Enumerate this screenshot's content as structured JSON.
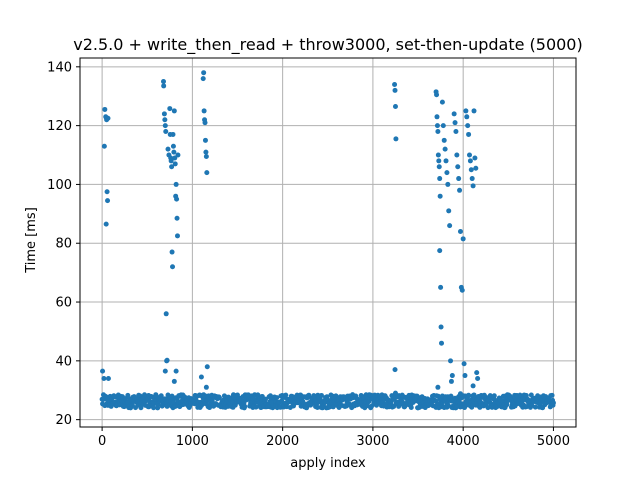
{
  "chart_data": {
    "type": "scatter",
    "title": "v2.5.0 + write_then_read + throw3000, set-then-update (5000)",
    "xlabel": "apply index",
    "ylabel": "Time [ms]",
    "xlim": [
      -245,
      5250
    ],
    "ylim": [
      17.5,
      143
    ],
    "xticks": [
      0,
      1000,
      2000,
      3000,
      4000,
      5000
    ],
    "yticks": [
      20,
      40,
      60,
      80,
      100,
      120,
      140
    ],
    "grid": true,
    "marker_color": "#1f77b4",
    "baseline": {
      "description_range": [
        0,
        5000
      ],
      "y_min": 24,
      "y_max": 28.5
    },
    "outliers": [
      [
        5,
        36.5
      ],
      [
        20,
        34
      ],
      [
        30,
        125.5
      ],
      [
        40,
        123
      ],
      [
        50,
        122
      ],
      [
        25,
        113
      ],
      [
        45,
        86.5
      ],
      [
        55,
        97.5
      ],
      [
        60,
        94.5
      ],
      [
        70,
        34
      ],
      [
        65,
        122.5
      ],
      [
        680,
        135
      ],
      [
        682,
        133.5
      ],
      [
        690,
        124
      ],
      [
        695,
        122
      ],
      [
        700,
        120
      ],
      [
        705,
        118
      ],
      [
        710,
        56
      ],
      [
        715,
        40
      ],
      [
        720,
        40.2
      ],
      [
        700,
        36.5
      ],
      [
        730,
        112
      ],
      [
        740,
        110
      ],
      [
        750,
        125.8
      ],
      [
        755,
        117
      ],
      [
        760,
        109
      ],
      [
        765,
        108
      ],
      [
        770,
        106
      ],
      [
        775,
        77
      ],
      [
        780,
        72
      ],
      [
        785,
        117
      ],
      [
        790,
        113
      ],
      [
        795,
        111
      ],
      [
        800,
        125
      ],
      [
        805,
        109
      ],
      [
        810,
        107
      ],
      [
        815,
        96
      ],
      [
        820,
        100
      ],
      [
        825,
        95
      ],
      [
        830,
        88.5
      ],
      [
        835,
        82.5
      ],
      [
        840,
        110
      ],
      [
        800,
        33
      ],
      [
        820,
        36.5
      ],
      [
        1100,
        34.5
      ],
      [
        1120,
        136
      ],
      [
        1125,
        138
      ],
      [
        1130,
        125
      ],
      [
        1135,
        122
      ],
      [
        1140,
        121
      ],
      [
        1145,
        115
      ],
      [
        1150,
        111
      ],
      [
        1155,
        109.5
      ],
      [
        1160,
        104
      ],
      [
        1165,
        38
      ],
      [
        1155,
        31
      ],
      [
        3240,
        134
      ],
      [
        3245,
        132
      ],
      [
        3250,
        126.5
      ],
      [
        3255,
        115.5
      ],
      [
        3245,
        37
      ],
      [
        3250,
        29
      ],
      [
        3700,
        131.5
      ],
      [
        3705,
        130.5
      ],
      [
        3710,
        123
      ],
      [
        3715,
        120
      ],
      [
        3720,
        118
      ],
      [
        3725,
        110
      ],
      [
        3730,
        108
      ],
      [
        3735,
        106
      ],
      [
        3740,
        102
      ],
      [
        3745,
        96
      ],
      [
        3750,
        65
      ],
      [
        3755,
        51.5
      ],
      [
        3760,
        46
      ],
      [
        3740,
        77.5
      ],
      [
        3720,
        31
      ],
      [
        3770,
        128
      ],
      [
        3780,
        120
      ],
      [
        3790,
        115
      ],
      [
        3800,
        112
      ],
      [
        3810,
        108
      ],
      [
        3820,
        104
      ],
      [
        3830,
        100
      ],
      [
        3840,
        91
      ],
      [
        3850,
        86
      ],
      [
        3860,
        40
      ],
      [
        3870,
        33
      ],
      [
        3880,
        35
      ],
      [
        3900,
        124
      ],
      [
        3910,
        121
      ],
      [
        3920,
        118
      ],
      [
        3930,
        110
      ],
      [
        3940,
        106
      ],
      [
        3950,
        102
      ],
      [
        3960,
        98
      ],
      [
        3970,
        84
      ],
      [
        3980,
        65
      ],
      [
        3990,
        64
      ],
      [
        4000,
        81.5
      ],
      [
        4010,
        39
      ],
      [
        4020,
        35
      ],
      [
        3970,
        28.8
      ],
      [
        4030,
        125
      ],
      [
        4040,
        123
      ],
      [
        4050,
        120
      ],
      [
        4060,
        117
      ],
      [
        4070,
        110
      ],
      [
        4080,
        108
      ],
      [
        4090,
        105
      ],
      [
        4100,
        102
      ],
      [
        4110,
        99.5
      ],
      [
        4120,
        125
      ],
      [
        4130,
        109
      ],
      [
        4140,
        105.5
      ],
      [
        4150,
        36
      ],
      [
        4160,
        34
      ],
      [
        4110,
        31.5
      ]
    ]
  }
}
